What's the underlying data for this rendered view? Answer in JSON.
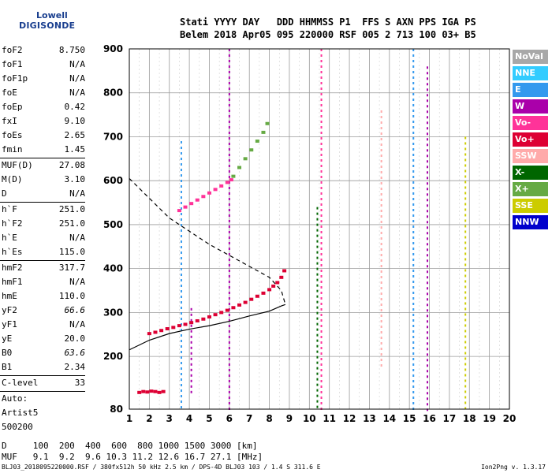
{
  "logo": {
    "line1": "Lowell",
    "line2": "DIGISONDE",
    "color": "#1a3f8f"
  },
  "header": {
    "line1": "Stati YYYY DAY   DDD HHMMSS P1  FFS S AXN PPS IGA PS",
    "line2": "Belem 2018 Apr05 095 220000 RSF 005 2 713 100 03+ B5"
  },
  "params": [
    {
      "label": "foF2",
      "value": "8.750"
    },
    {
      "label": "foF1",
      "value": "N/A"
    },
    {
      "label": "foF1p",
      "value": "N/A"
    },
    {
      "label": "foE",
      "value": "N/A"
    },
    {
      "label": "foEp",
      "value": "0.42"
    },
    {
      "label": "fxI",
      "value": "9.10"
    },
    {
      "label": "foEs",
      "value": "2.65"
    },
    {
      "label": "fmin",
      "value": "1.45",
      "sep": true
    },
    {
      "label": "MUF(D)",
      "value": "27.08"
    },
    {
      "label": "M(D)",
      "value": "3.10"
    },
    {
      "label": "D",
      "value": "N/A",
      "sep": true
    },
    {
      "label": "h`F",
      "value": "251.0"
    },
    {
      "label": "h`F2",
      "value": "251.0"
    },
    {
      "label": "h`E",
      "value": "N/A"
    },
    {
      "label": "h`Es",
      "value": "115.0",
      "sep": true
    },
    {
      "label": "hmF2",
      "value": "317.7"
    },
    {
      "label": "hmF1",
      "value": "N/A"
    },
    {
      "label": "hmE",
      "value": "110.0"
    },
    {
      "label": "yF2",
      "value": "66.6",
      "italic": true
    },
    {
      "label": "yF1",
      "value": "N/A"
    },
    {
      "label": "yE",
      "value": "20.0"
    },
    {
      "label": "B0",
      "value": "63.6",
      "italic": true
    },
    {
      "label": "B1",
      "value": "2.34",
      "sep": true
    },
    {
      "label": "C-level",
      "value": "33",
      "sep": true
    },
    {
      "label": "Auto:",
      "value": ""
    },
    {
      "label": "Artist5",
      "value": ""
    },
    {
      "label": "500200",
      "value": ""
    }
  ],
  "legend": [
    {
      "label": "NoVal",
      "color": "#a8a8a8"
    },
    {
      "label": "NNE",
      "color": "#33ccff"
    },
    {
      "label": "E",
      "color": "#3399ee"
    },
    {
      "label": "W",
      "color": "#aa00aa"
    },
    {
      "label": "Vo-",
      "color": "#ff3399"
    },
    {
      "label": "Vo+",
      "color": "#dd0033"
    },
    {
      "label": "SSW",
      "color": "#ffaaaa"
    },
    {
      "label": "X-",
      "color": "#006600"
    },
    {
      "label": "X+",
      "color": "#66aa44"
    },
    {
      "label": "SSE",
      "color": "#cccc00"
    },
    {
      "label": "NNW",
      "color": "#0000cc"
    }
  ],
  "bottom": {
    "line1": "D     100  200  400  600  800 1000 1500 3000 [km]",
    "line2": "MUF   9.1  9.2  9.6 10.3 11.2 12.6 16.7 27.1 [MHz]"
  },
  "footer_left": "BLJ03_2018095220000.RSF / 380fx512h 50 kHz 2.5 km / DPS-4D BLJ03 103 / 1.4 S 311.6 E",
  "footer_right": "Ion2Png v. 1.3.17",
  "chart_data": {
    "type": "scatter",
    "xlim": [
      1,
      20
    ],
    "ylim": [
      80,
      900
    ],
    "x_ticks": [
      1,
      2,
      3,
      4,
      5,
      6,
      7,
      8,
      9,
      10,
      11,
      12,
      13,
      14,
      15,
      16,
      17,
      18,
      19,
      20
    ],
    "y_ticks": [
      80,
      200,
      300,
      400,
      500,
      600,
      700,
      800,
      900
    ],
    "grid": true,
    "series": [
      {
        "kind": "points",
        "color": "#dd0033",
        "x": [
          2.0,
          2.3,
          2.6,
          2.9,
          3.2,
          3.5,
          3.8,
          4.1,
          4.4,
          4.7,
          5.0,
          5.3,
          5.6,
          5.9,
          6.2,
          6.5,
          6.8,
          7.1,
          7.4,
          7.7,
          8.0,
          8.2,
          8.4,
          8.6,
          8.75
        ],
        "y": [
          252,
          255,
          259,
          263,
          266,
          270,
          273,
          277,
          281,
          285,
          290,
          295,
          300,
          305,
          311,
          317,
          323,
          330,
          337,
          344,
          352,
          360,
          368,
          380,
          395
        ]
      },
      {
        "kind": "points",
        "color": "#ff3399",
        "x": [
          3.5,
          3.8,
          4.1,
          4.4,
          4.7,
          5.0,
          5.3,
          5.6,
          5.9,
          6.1
        ],
        "y": [
          532,
          540,
          548,
          556,
          564,
          572,
          580,
          588,
          596,
          602
        ]
      },
      {
        "kind": "points",
        "color": "#66aa44",
        "x": [
          6.2,
          6.5,
          6.8,
          7.1,
          7.4,
          7.7,
          7.9
        ],
        "y": [
          610,
          630,
          650,
          670,
          690,
          710,
          730
        ]
      },
      {
        "kind": "line",
        "name": "profile-solid",
        "color": "#000000",
        "x": [
          1.0,
          2.0,
          3.0,
          4.0,
          5.0,
          6.0,
          7.0,
          8.0,
          8.6,
          8.8
        ],
        "y": [
          215,
          237,
          252,
          262,
          270,
          280,
          292,
          303,
          315,
          318
        ]
      },
      {
        "kind": "line",
        "name": "profile-dashed",
        "color": "#000000",
        "dashed": true,
        "x": [
          1.0,
          2.0,
          3.0,
          4.0,
          5.0,
          6.0,
          7.0,
          8.0,
          8.6,
          8.8
        ],
        "y": [
          605,
          560,
          515,
          485,
          455,
          430,
          405,
          380,
          350,
          318
        ]
      },
      {
        "kind": "points",
        "color": "#dd0033",
        "x": [
          1.5,
          1.7,
          1.9,
          2.1,
          2.3,
          2.5,
          2.7
        ],
        "y": [
          118,
          120,
          119,
          121,
          120,
          118,
          120
        ]
      }
    ],
    "vertical_bands": [
      {
        "x": 3.6,
        "y": [
          80,
          690
        ],
        "color": "#3399ee"
      },
      {
        "x": 4.1,
        "y": [
          110,
          310
        ],
        "color": "#aa00aa"
      },
      {
        "x": 6.0,
        "y": [
          80,
          900
        ],
        "color": "#aa00aa"
      },
      {
        "x": 10.4,
        "y": [
          80,
          540
        ],
        "color": "#006600"
      },
      {
        "x": 10.6,
        "y": [
          80,
          900
        ],
        "color": "#ff3399"
      },
      {
        "x": 13.6,
        "y": [
          180,
          760
        ],
        "color": "#ffaaaa"
      },
      {
        "x": 15.2,
        "y": [
          80,
          900
        ],
        "color": "#3399ee"
      },
      {
        "x": 15.9,
        "y": [
          80,
          860
        ],
        "color": "#aa00aa"
      },
      {
        "x": 17.8,
        "y": [
          80,
          700
        ],
        "color": "#cccc00"
      }
    ]
  }
}
